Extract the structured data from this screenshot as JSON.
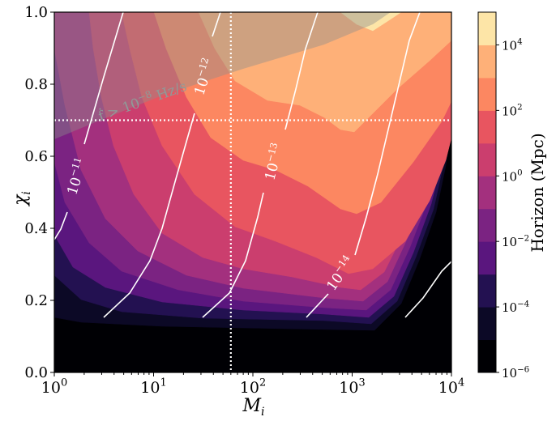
{
  "chart_data": {
    "type": "heatmap",
    "subtype": "filled-contour",
    "xlabel": "M_i",
    "ylabel": "χ_i",
    "x_scale": "log",
    "xlim": [
      1,
      10000
    ],
    "ylim": [
      0.0,
      1.0
    ],
    "x_ticks": [
      {
        "value": 1,
        "label": "10^0"
      },
      {
        "value": 10,
        "label": "10^1"
      },
      {
        "value": 100,
        "label": "10^2"
      },
      {
        "value": 1000,
        "label": "10^3"
      },
      {
        "value": 10000,
        "label": "10^4"
      }
    ],
    "y_ticks": [
      "0.0",
      "0.2",
      "0.4",
      "0.6",
      "0.8",
      "1.0"
    ],
    "grid": false,
    "colorbar": {
      "label": "Horizon (Mpc)",
      "scale": "log",
      "range_exponents": [
        -6,
        5
      ],
      "ticks": [
        {
          "exp": -6,
          "label": "10^-6"
        },
        {
          "exp": -4,
          "label": "10^-4"
        },
        {
          "exp": -2,
          "label": "10^-2"
        },
        {
          "exp": 0,
          "label": "10^0"
        },
        {
          "exp": 2,
          "label": "10^2"
        },
        {
          "exp": 4,
          "label": "10^4"
        }
      ],
      "colormap": "magma",
      "level_colors": [
        "#000004",
        "#0c0926",
        "#231151",
        "#5a167e",
        "#7b2382",
        "#a3307e",
        "#cb3e6e",
        "#e85560",
        "#fc8761",
        "#feb078",
        "#fde5a7"
      ]
    },
    "contour_lines": [
      {
        "label": "10^-11",
        "value": 1e-11
      },
      {
        "label": "10^-12",
        "value": 1e-12
      },
      {
        "label": "10^-13",
        "value": 1e-13
      },
      {
        "label": "10^-14",
        "value": 1e-14
      },
      {
        "label": "",
        "value": 1e-15
      }
    ],
    "shaded_region": {
      "label": "ḟ > 10^-8 Hz/s",
      "color": "#8c8c8c"
    },
    "reference_lines": {
      "horizontal_chi": 0.7,
      "vertical_M": 60,
      "style": "dotted",
      "color": "#ffffff"
    }
  }
}
